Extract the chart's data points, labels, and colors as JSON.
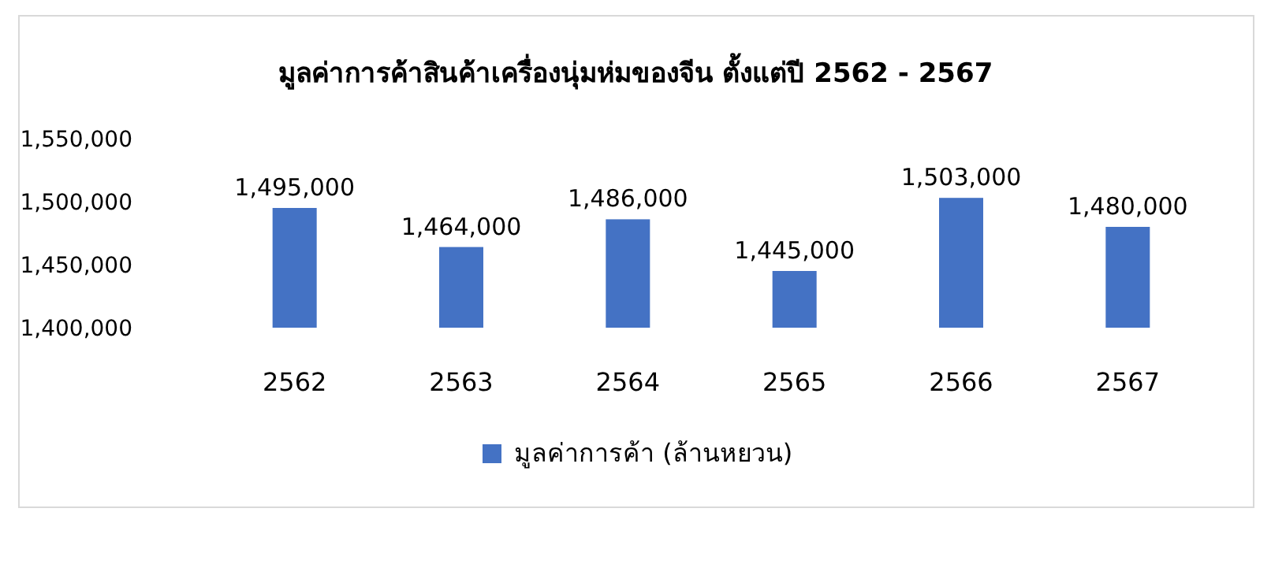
{
  "chart_data": {
    "type": "bar",
    "title": "มูลค่าการค้าสินค้าเครื่องนุ่มห่มของจีน ตั้งแต่ปี 2562 - 2567",
    "categories": [
      "2562",
      "2563",
      "2564",
      "2565",
      "2566",
      "2567"
    ],
    "series": [
      {
        "name": "มูลค่าการค้า (ล้านหยวน)",
        "color": "#4472c4",
        "values": [
          1495000,
          1464000,
          1486000,
          1445000,
          1503000,
          1480000
        ],
        "value_labels": [
          "1,495,000",
          "1,464,000",
          "1,486,000",
          "1,445,000",
          "1,503,000",
          "1,480,000"
        ]
      }
    ],
    "ylim": [
      1400000,
      1550000
    ],
    "yticks": [
      {
        "value": 1400000,
        "label": "1,400,000"
      },
      {
        "value": 1450000,
        "label": "1,450,000"
      },
      {
        "value": 1500000,
        "label": "1,500,000"
      },
      {
        "value": 1550000,
        "label": "1,550,000"
      }
    ],
    "legend": "bottom"
  }
}
